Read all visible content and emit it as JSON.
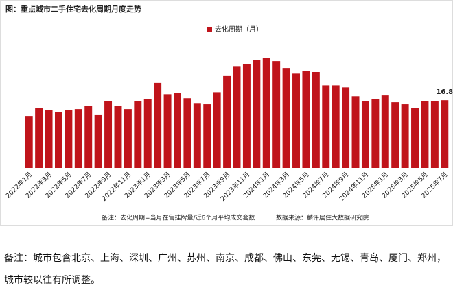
{
  "chart_data": {
    "type": "bar",
    "title": "图：重点城市二手住宅去化周期月度走势",
    "categories": [
      "2022年1月",
      null,
      "2022年3月",
      null,
      "2022年5月",
      null,
      "2022年7月",
      null,
      "2022年9月",
      null,
      "2022年11月",
      null,
      "2023年1月",
      null,
      "2023年3月",
      null,
      "2023年5月",
      null,
      "2023年7月",
      null,
      "2023年9月",
      null,
      "2023年11月",
      null,
      "2024年1月",
      null,
      "2024年3月",
      null,
      "2024年5月",
      null,
      "2024年7月",
      null,
      "2024年9月",
      null,
      "2024年11月",
      null,
      "2025年1月",
      null,
      "2025年3月",
      null,
      "2025年5月",
      null,
      "2025年7月"
    ],
    "series": [
      {
        "name": "去化周期（月）",
        "color": "#c0141b",
        "values": [
          12.9,
          14.9,
          14.3,
          13.8,
          14.4,
          14.6,
          15.3,
          13.1,
          16.5,
          15.4,
          14.6,
          16.5,
          17.1,
          21.1,
          18.3,
          18.7,
          17.3,
          16.1,
          15.8,
          18.8,
          22.8,
          25.1,
          25.8,
          26.8,
          27.2,
          26.5,
          24.8,
          23.4,
          24.1,
          23.8,
          20.5,
          20.5,
          20.0,
          17.8,
          16.5,
          17.1,
          18.0,
          16.3,
          15.8,
          14.9,
          16.5,
          16.5,
          16.8
        ],
        "value_labels": [
          null,
          null,
          null,
          null,
          null,
          null,
          null,
          null,
          null,
          null,
          null,
          null,
          null,
          null,
          null,
          null,
          null,
          null,
          null,
          null,
          null,
          null,
          null,
          null,
          null,
          null,
          null,
          null,
          null,
          null,
          null,
          null,
          null,
          null,
          null,
          null,
          null,
          null,
          null,
          null,
          null,
          null,
          "16.8"
        ]
      }
    ],
    "footnote": "备注：去化周期=当月在售挂牌量/近6个月平均成交套数",
    "source": "数据来源：麟评居住大数据研究院"
  },
  "note": "备注：城市包含北京、上海、深圳、广州、苏州、南京、成都、佛山、东莞、无锡、青岛、厦门、郑州，城市较以往有所调整。"
}
